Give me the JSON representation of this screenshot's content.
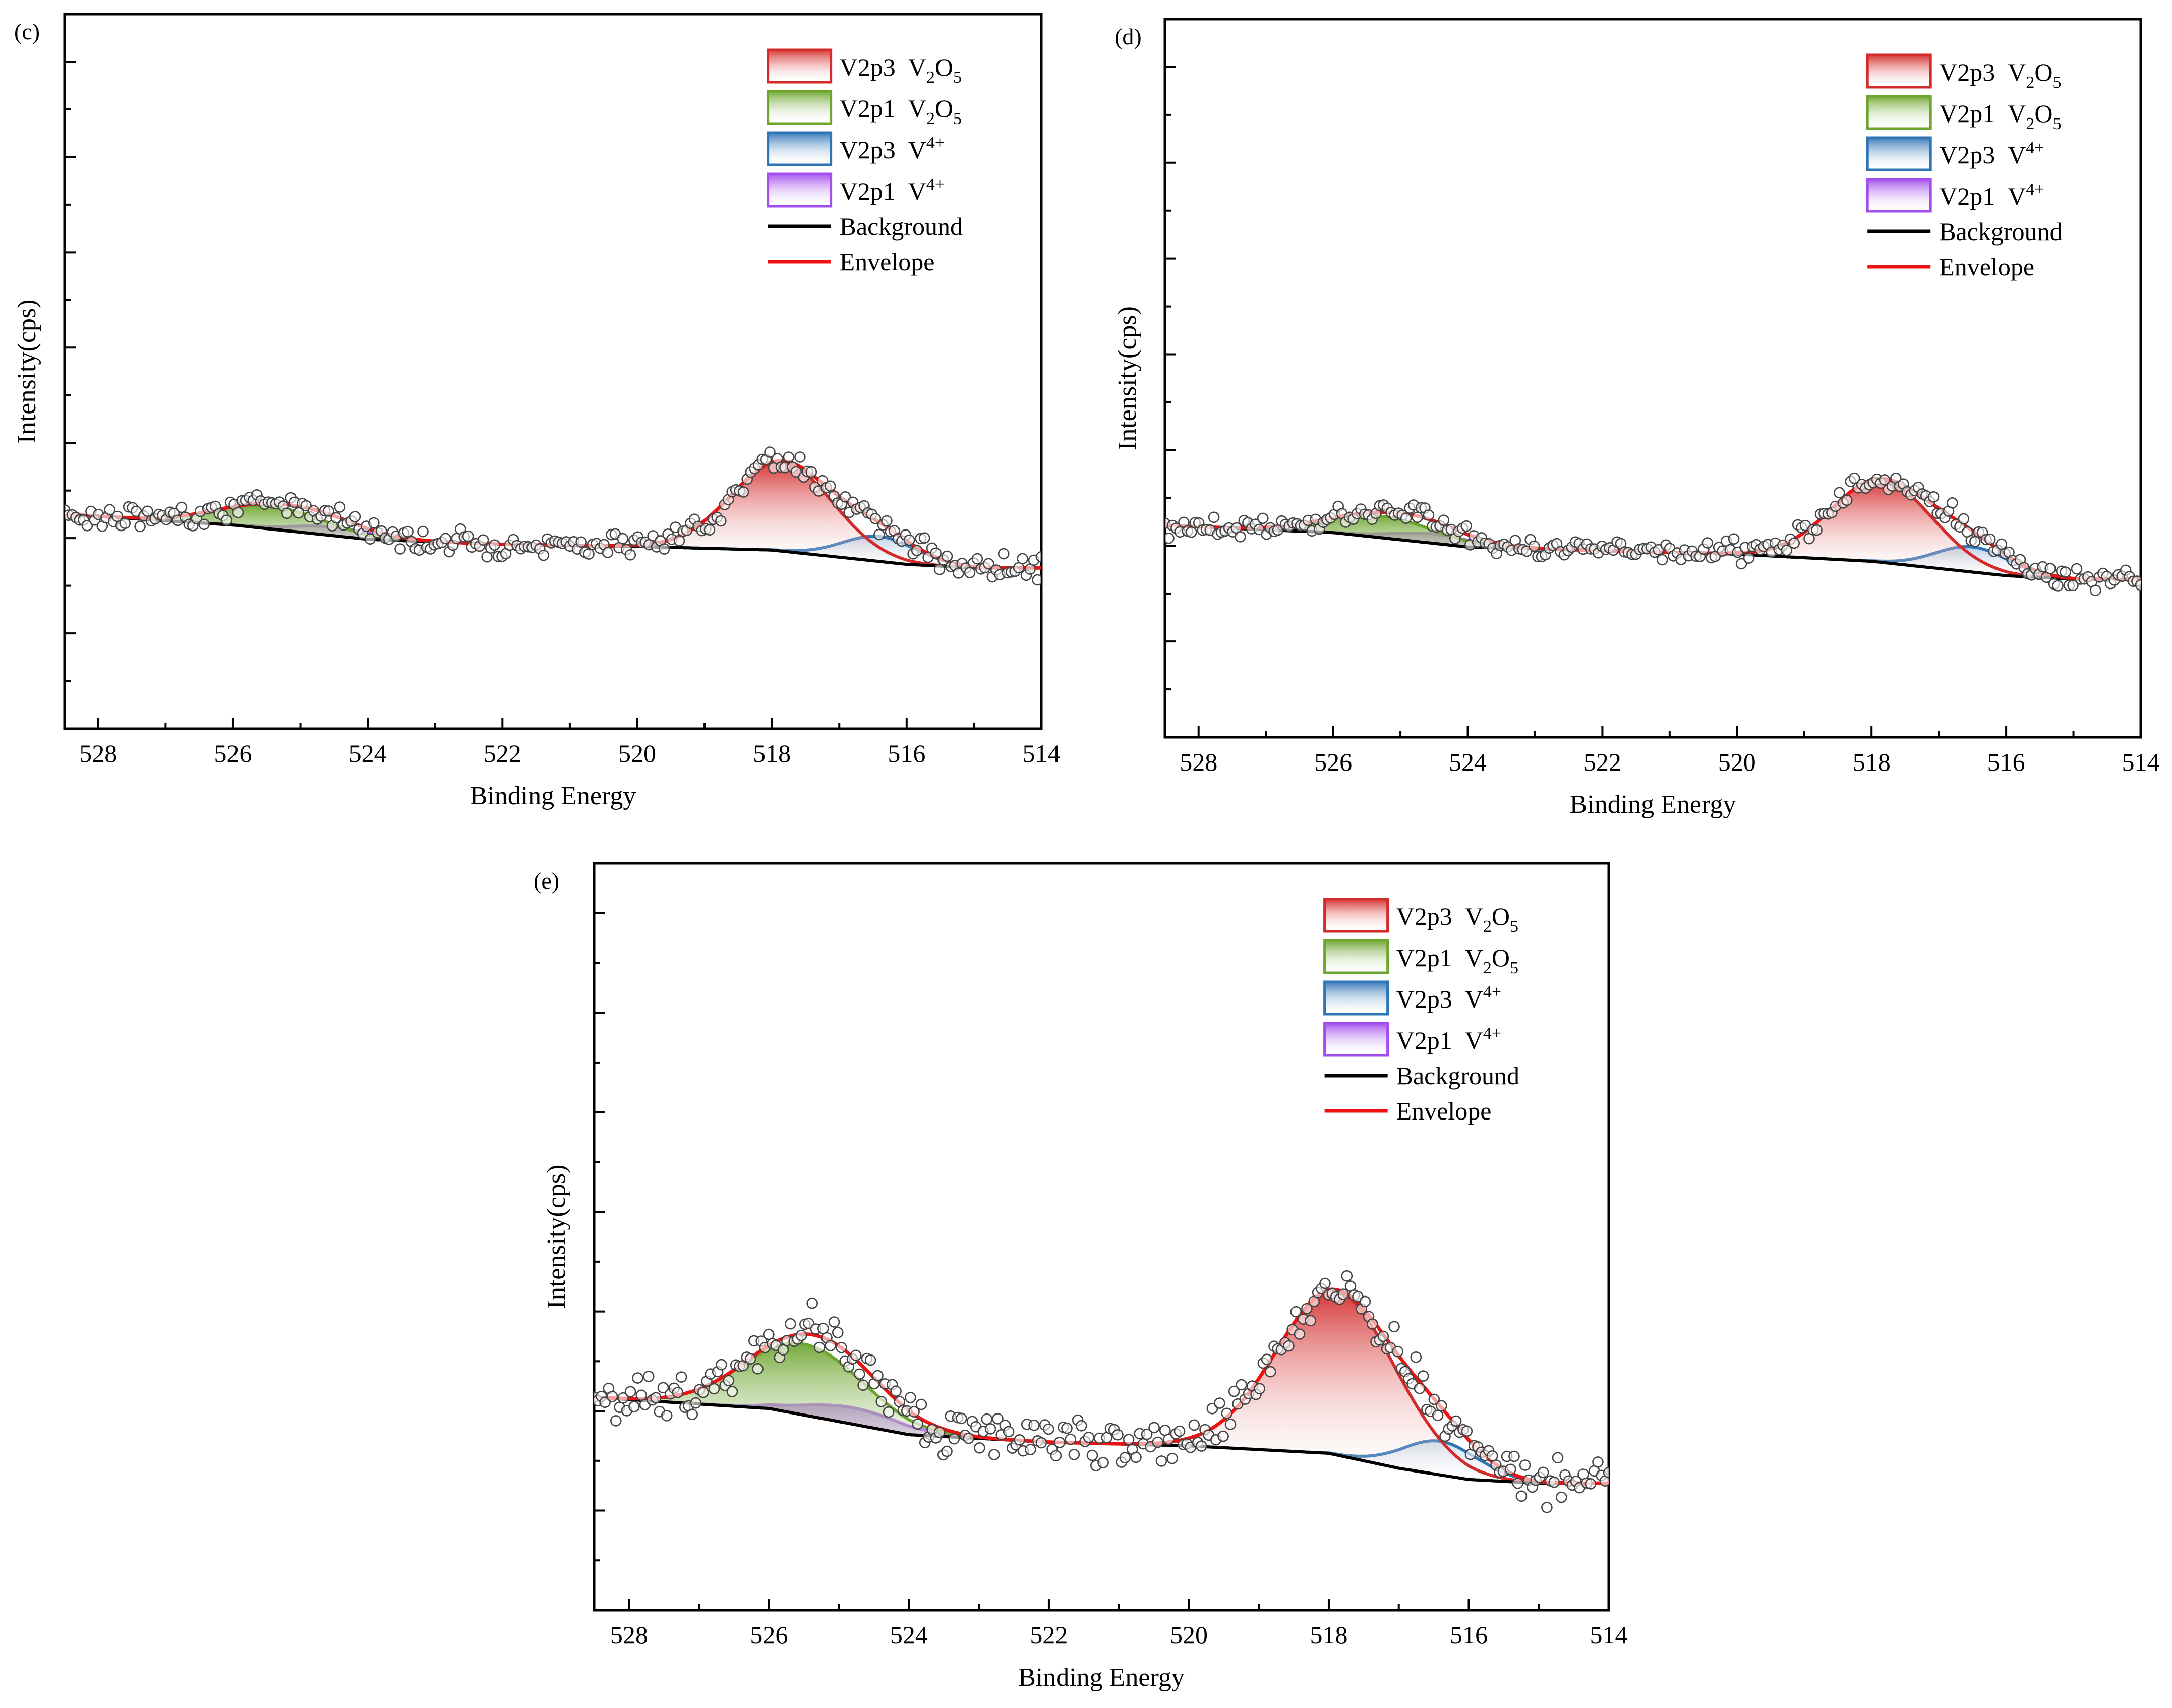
{
  "figure": {
    "panels": [
      "c",
      "d",
      "e"
    ],
    "colors": {
      "v2p3_v2o5": "#d42a2a",
      "v2p1_v2o5": "#6ea52f",
      "v2p3_v4": "#2f74b5",
      "v2p1_v4": "#a24ded",
      "background": "#000000",
      "envelope": "#ee1111",
      "points": "#444444"
    }
  },
  "chart_data": [
    {
      "type": "line",
      "panel_tag": "(c)",
      "title": "",
      "xlabel": "Binding Energy",
      "ylabel": "Intensity(cps)",
      "xlim": [
        528.5,
        514
      ],
      "ylim": [
        0,
        100
      ],
      "x_ticks": [
        528,
        526,
        524,
        522,
        520,
        518,
        516,
        514
      ],
      "x_tick_labels": [
        "528",
        "526",
        "524",
        "522",
        "520",
        "518",
        "516",
        "514"
      ],
      "y_tick_labels": [],
      "legend": [
        {
          "key": "v2p3_v2o5",
          "label": "V2p3",
          "species": "V",
          "sub": "2",
          "mid": "O",
          "sub2": "5",
          "sup": ""
        },
        {
          "key": "v2p1_v2o5",
          "label": "V2p1",
          "species": "V",
          "sub": "2",
          "mid": "O",
          "sub2": "5",
          "sup": ""
        },
        {
          "key": "v2p3_v4",
          "label": "V2p3",
          "species": "V",
          "sub": "",
          "mid": "",
          "sub2": "",
          "sup": "4+"
        },
        {
          "key": "v2p1_v4",
          "label": "V2p1",
          "species": "V",
          "sub": "",
          "mid": "",
          "sub2": "",
          "sup": "4+"
        },
        {
          "key": "background",
          "label": "Background"
        },
        {
          "key": "envelope",
          "label": "Envelope"
        }
      ],
      "legend_position": "top-right",
      "background": {
        "x": [
          528.5,
          526,
          524,
          522,
          520,
          518,
          517,
          516,
          515,
          514
        ],
        "y": [
          30,
          28.5,
          26.5,
          25.8,
          25.5,
          25,
          24,
          23,
          22.5,
          22.5
        ]
      },
      "peaks": [
        {
          "key": "v2p3_v2o5",
          "center": 517.85,
          "height": 12.5,
          "width": 0.75
        },
        {
          "key": "v2p1_v2o5",
          "center": 525.45,
          "height": 3.2,
          "width": 0.8
        },
        {
          "key": "v2p3_v4",
          "center": 516.4,
          "height": 3.5,
          "width": 0.55
        },
        {
          "key": "v2p1_v4",
          "center": 524.5,
          "height": 1.2,
          "width": 0.6
        }
      ],
      "points_noise": 0.8,
      "points_count": 260
    },
    {
      "type": "line",
      "panel_tag": "(d)",
      "title": "",
      "xlabel": "Binding Energy",
      "ylabel": "Intensity(cps)",
      "xlim": [
        528.5,
        514
      ],
      "ylim": [
        0,
        100
      ],
      "x_ticks": [
        528,
        526,
        524,
        522,
        520,
        518,
        516,
        514
      ],
      "x_tick_labels": [
        "528",
        "526",
        "524",
        "522",
        "520",
        "518",
        "516",
        "514"
      ],
      "y_tick_labels": [],
      "legend": [
        {
          "key": "v2p3_v2o5",
          "label": "V2p3",
          "species": "V",
          "sub": "2",
          "mid": "O",
          "sub2": "5",
          "sup": ""
        },
        {
          "key": "v2p1_v2o5",
          "label": "V2p1",
          "species": "V",
          "sub": "2",
          "mid": "O",
          "sub2": "5",
          "sup": ""
        },
        {
          "key": "v2p3_v4",
          "label": "V2p3",
          "species": "V",
          "sub": "",
          "mid": "",
          "sub2": "",
          "sup": "4+"
        },
        {
          "key": "v2p1_v4",
          "label": "V2p1",
          "species": "V",
          "sub": "",
          "mid": "",
          "sub2": "",
          "sup": "4+"
        },
        {
          "key": "background",
          "label": "Background"
        },
        {
          "key": "envelope",
          "label": "Envelope"
        }
      ],
      "legend_position": "top-right",
      "background": {
        "x": [
          528.5,
          526,
          524,
          522,
          520,
          518,
          517,
          516,
          515,
          514
        ],
        "y": [
          29.5,
          28.5,
          26.5,
          26,
          25.5,
          24.5,
          23.5,
          22.5,
          22,
          22
        ]
      },
      "peaks": [
        {
          "key": "v2p3_v2o5",
          "center": 517.85,
          "height": 11.5,
          "width": 0.75
        },
        {
          "key": "v2p1_v2o5",
          "center": 525.3,
          "height": 3.0,
          "width": 0.8
        },
        {
          "key": "v2p3_v4",
          "center": 516.5,
          "height": 3.5,
          "width": 0.55
        },
        {
          "key": "v2p1_v4",
          "center": 524.5,
          "height": 1.3,
          "width": 0.6
        }
      ],
      "points_noise": 0.8,
      "points_count": 260
    },
    {
      "type": "line",
      "panel_tag": "(e)",
      "title": "",
      "xlabel": "Binding Energy",
      "ylabel": "Intensity(cps)",
      "xlim": [
        528.5,
        514
      ],
      "ylim": [
        0,
        100
      ],
      "x_ticks": [
        528,
        526,
        524,
        522,
        520,
        518,
        516,
        514
      ],
      "x_tick_labels": [
        "528",
        "526",
        "524",
        "522",
        "520",
        "518",
        "516",
        "514"
      ],
      "y_tick_labels": [],
      "legend": [
        {
          "key": "v2p3_v2o5",
          "label": "V2p3",
          "species": "V",
          "sub": "2",
          "mid": "O",
          "sub2": "5",
          "sup": ""
        },
        {
          "key": "v2p1_v2o5",
          "label": "V2p1",
          "species": "V",
          "sub": "2",
          "mid": "O",
          "sub2": "5",
          "sup": ""
        },
        {
          "key": "v2p3_v4",
          "label": "V2p3",
          "species": "V",
          "sub": "",
          "mid": "",
          "sub2": "",
          "sup": "4+"
        },
        {
          "key": "v2p1_v4",
          "label": "V2p1",
          "species": "V",
          "sub": "",
          "mid": "",
          "sub2": "",
          "sup": "4+"
        },
        {
          "key": "background",
          "label": "Background"
        },
        {
          "key": "envelope",
          "label": "Envelope"
        }
      ],
      "legend_position": "top-right",
      "background": {
        "x": [
          528.5,
          526,
          524,
          522,
          520,
          518,
          517,
          516,
          515,
          514
        ],
        "y": [
          28.5,
          27,
          23.5,
          22.5,
          22,
          21,
          19,
          17.5,
          17,
          17
        ]
      },
      "peaks": [
        {
          "key": "v2p3_v2o5",
          "center": 517.9,
          "height": 22,
          "width": 0.85
        },
        {
          "key": "v2p1_v2o5",
          "center": 525.5,
          "height": 9.5,
          "width": 0.85
        },
        {
          "key": "v2p3_v4",
          "center": 516.4,
          "height": 4.5,
          "width": 0.55
        },
        {
          "key": "v2p1_v4",
          "center": 524.8,
          "height": 2.2,
          "width": 0.7
        }
      ],
      "points_noise": 1.6,
      "points_count": 280
    }
  ]
}
